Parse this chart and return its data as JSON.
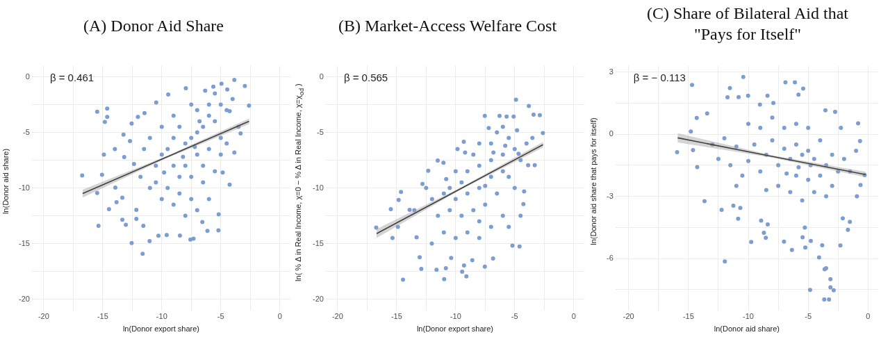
{
  "chart_data": [
    {
      "type": "scatter",
      "title": "(A) Donor Aid Share",
      "xlabel": "ln(Donor export share)",
      "ylabel": "ln(Donor aid share)",
      "annotations": [
        "β = 0.461"
      ],
      "marker": "circle",
      "grid": true,
      "xlim": [
        -21,
        0.9
      ],
      "ylim": [
        -21,
        1
      ],
      "xticks": [
        -20,
        {
          "value": -17.5,
          "label": null
        },
        -15,
        {
          "value": -12.5,
          "label": null
        },
        -10,
        {
          "value": -7.5,
          "label": null
        },
        -5,
        {
          "value": -2.5,
          "label": null
        },
        0
      ],
      "yticks": [
        -20,
        {
          "value": -17.5,
          "label": null
        },
        -15,
        {
          "value": -12.5,
          "label": null
        },
        -10,
        {
          "value": -7.5,
          "label": null
        },
        -5,
        {
          "value": -2.5,
          "label": null
        },
        0
      ],
      "series": [
        {
          "color": "#7c9dcf",
          "x": [
            -16.74,
            -15.47,
            -14.62,
            -14.82,
            -14.62,
            -14.9,
            -15.06,
            -15.47,
            -15.36,
            -14.47,
            -13.93,
            -13.83,
            -13.97,
            -13.24,
            -13.34,
            -13.34,
            -13.04,
            -12.55,
            -12.15,
            -12.15,
            -11.56,
            -11.62,
            -11.03,
            -10.28,
            -9.58,
            -8.46,
            -7.57,
            -7.31,
            -6.56,
            -6.13,
            -5.2,
            -5.18,
            -4.25,
            -4.84,
            -3.85,
            -2.96,
            -2.61,
            -4.94,
            -4.45,
            -5.63,
            -6.32,
            -7.96,
            -9.45,
            -10.47,
            -11.46,
            -12.02,
            -12.55,
            -12.69,
            -13.18,
            -12.35,
            -3.32,
            -3.85,
            -4.25,
            -7,
            -6.5,
            -7.5,
            -8,
            -6,
            -5.5,
            -7,
            -8.5,
            -9,
            -9.5,
            -10,
            -10.5,
            -8,
            -7,
            -6,
            -5,
            -4.5,
            -5,
            -6,
            -7.5,
            -9,
            -10,
            -11,
            -11.5,
            -10.5,
            -9.5,
            -8.5,
            -7.5,
            -6.5,
            -5.5,
            -6,
            -9,
            -10,
            -11,
            -7,
            -8,
            -8.5,
            -9,
            -7.5,
            -6.5,
            -5,
            -4.5,
            -3.5,
            -4,
            -5.5,
            -6.8,
            -7.2,
            -8.2,
            -9.8,
            -11.8
          ],
          "values": [
            -8.87,
            -3.13,
            -2.85,
            -4.06,
            -3.6,
            -7,
            -8.8,
            -10.45,
            -13.4,
            -11.9,
            -9.96,
            -11.28,
            -6.5,
            -5.2,
            -10.87,
            -12.85,
            -13.3,
            -14.95,
            -12.78,
            -11.96,
            -13.4,
            -15.92,
            -14.78,
            -14.29,
            -14.23,
            -14.27,
            -14.64,
            -14.56,
            -13.05,
            -13.86,
            -13.81,
            -12.37,
            -9.69,
            -8.6,
            -0.27,
            -0.82,
            -2.58,
            -0.62,
            -1.13,
            -0.89,
            -1.24,
            -1.03,
            -1.59,
            -2.31,
            -3.26,
            -3.6,
            -4.19,
            -5.77,
            -7.22,
            -7.84,
            -5.09,
            -6.8,
            -3.09,
            -5,
            -4.5,
            -5.5,
            -6,
            -3.5,
            -4,
            -3,
            -4.5,
            -5.5,
            -6.5,
            -7,
            -8,
            -8,
            -7,
            -6.5,
            -5.5,
            -3,
            -2.5,
            -2.5,
            -2.5,
            -3.5,
            -4.5,
            -5.5,
            -6.5,
            -9.5,
            -10,
            -10.5,
            -11,
            -9.5,
            -8.5,
            -11,
            -11.5,
            -11,
            -10,
            -12,
            -12.5,
            -9,
            -8,
            -9,
            -8,
            -7,
            -6,
            -4.5,
            -2,
            -1.5,
            -4,
            -6.3,
            -7.2,
            -8.6,
            -9
          ]
        },
        {
          "type": "line",
          "color": "#404040",
          "marker": "none",
          "x": [
            -16.7,
            -9.65,
            -2.6
          ],
          "values": [
            -10.5,
            -7.25,
            -4.0
          ],
          "lower": [
            -10.85,
            -7.35,
            -4.25
          ],
          "upper": [
            -10.15,
            -7.15,
            -3.75
          ]
        }
      ]
    },
    {
      "type": "scatter",
      "title": "(B) Market-Access Welfare Cost",
      "xlabel": "ln(Donor export share)",
      "ylabel": "ln( % Δ in Real Income, χ=0  −  % Δ in Real Income, χ=χ$_{od}$ )",
      "annotations": [
        "β = 0.565"
      ],
      "marker": "circle",
      "grid": true,
      "xlim": [
        -21,
        0.9
      ],
      "ylim": [
        -21,
        1
      ],
      "xticks": [
        -20,
        {
          "value": -17.5,
          "label": null
        },
        -15,
        {
          "value": -12.5,
          "label": null
        },
        -10,
        {
          "value": -7.5,
          "label": null
        },
        -5,
        {
          "value": -2.5,
          "label": null
        },
        0
      ],
      "yticks": [
        -20,
        {
          "value": -17.5,
          "label": null
        },
        -15,
        {
          "value": -12.5,
          "label": null
        },
        -10,
        {
          "value": -7.5,
          "label": null
        },
        -5,
        {
          "value": -2.5,
          "label": null
        },
        0
      ],
      "series": [
        {
          "color": "#7c9dcf",
          "x": [
            -16.73,
            -15.49,
            -15.35,
            -14.89,
            -14.63,
            -14.83,
            -14.46,
            -13.9,
            -13.31,
            -13.05,
            -12.91,
            -12.81,
            -12.32,
            -12.02,
            -11.62,
            -11.52,
            -10.83,
            -10.97,
            -10.38,
            -9.45,
            -9.09,
            -9.29,
            -8.59,
            -7.53,
            -6.83,
            -4.59,
            -5.19,
            -4.2,
            -4.26,
            -3.86,
            -3.3,
            -2.61,
            -2.87,
            -3.4,
            -3.8,
            -4.89,
            -5.09,
            -5.68,
            -6.28,
            -7.53,
            -9.31,
            -9.84,
            -11.03,
            -4.67,
            -7,
            -6.5,
            -6,
            -5.5,
            -5,
            -4.5,
            -6,
            -7,
            -8,
            -8.5,
            -8,
            -9,
            -9.5,
            -10,
            -10.5,
            -11,
            -10,
            -9,
            -8,
            -7,
            -6,
            -5.5,
            -5,
            -6.5,
            -7.5,
            -8.5,
            -9.5,
            -10.5,
            -11.5,
            -12,
            -8,
            -7,
            -6,
            -5.5,
            -9,
            -10,
            -8,
            -11,
            -7.5,
            -6.8,
            -5.8,
            -4.8,
            -4,
            -3.5,
            -7.2,
            -9.2,
            -10.8,
            -12.5,
            -13.5,
            -4.5
          ],
          "values": [
            -13.55,
            -11.9,
            -14.5,
            -13.5,
            -10.35,
            -11.07,
            -18.25,
            -11.96,
            -14.43,
            -16.23,
            -17.28,
            -9.63,
            -8.45,
            -15,
            -17.36,
            -7.53,
            -17.22,
            -18.19,
            -16.29,
            -17.53,
            -17.94,
            -16.97,
            -16.49,
            -17.07,
            -16.33,
            -15.26,
            -15.18,
            -10.31,
            -11.44,
            -7.94,
            -7.94,
            -5.05,
            -3.44,
            -3.4,
            -2.62,
            -2.06,
            -3.57,
            -3.57,
            -3.51,
            -3.51,
            -5.84,
            -6.49,
            -7.73,
            -6.91,
            -6,
            -5,
            -4.5,
            -5.5,
            -6.5,
            -7.5,
            -7,
            -7.5,
            -8,
            -7,
            -6,
            -8.5,
            -9.5,
            -8.5,
            -10,
            -10.5,
            -11,
            -10.5,
            -10,
            -9,
            -8.5,
            -9,
            -10,
            -10.5,
            -11.5,
            -12,
            -12.5,
            -12,
            -12.5,
            -11,
            -13,
            -13.5,
            -12.5,
            -13.5,
            -14,
            -14.5,
            -14.5,
            -14,
            -9.8,
            -6.8,
            -6.2,
            -4.8,
            -6,
            -5.5,
            -4.6,
            -6.8,
            -9.2,
            -10,
            -12,
            -12.5
          ]
        },
        {
          "type": "line",
          "color": "#404040",
          "marker": "none",
          "x": [
            -16.7,
            -9.65,
            -2.6
          ],
          "values": [
            -14.1,
            -10.1,
            -6.1
          ],
          "lower": [
            -14.5,
            -10.2,
            -6.35
          ],
          "upper": [
            -13.7,
            -10.0,
            -5.85
          ]
        }
      ]
    },
    {
      "type": "scatter",
      "title": "(C) Share of Bilateral Aid that \"Pays for Itself\"",
      "xlabel": "ln(Donor aid share)",
      "ylabel": "ln(Donor aid share that pays for itself)",
      "annotations": [
        "β = − 0.113"
      ],
      "marker": "circle",
      "grid": true,
      "xlim": [
        -21.1,
        0.85
      ],
      "ylim": [
        -8.5,
        3.3
      ],
      "xticks": [
        -20,
        {
          "value": -17.5,
          "label": null
        },
        -15,
        {
          "value": -12.5,
          "label": null
        },
        -10,
        {
          "value": -7.5,
          "label": null
        },
        -5,
        {
          "value": -2.5,
          "label": null
        },
        0
      ],
      "yticks": [
        {
          "value": -7.5,
          "label": null
        },
        -6,
        {
          "value": -4.5,
          "label": null
        },
        -3,
        {
          "value": -1.5,
          "label": null
        },
        0,
        {
          "value": 1.5,
          "label": null
        },
        3
      ],
      "series": [
        {
          "color": "#7c9dcf",
          "x": [
            -15.95,
            -14.62,
            -14.7,
            -10.42,
            -14.8,
            -14.31,
            -14.27,
            -13.66,
            -13.44,
            -11.96,
            -12.23,
            -11.74,
            -11.54,
            -10.81,
            -11.25,
            -10.85,
            -10.67,
            -10.02,
            -9.76,
            -9.03,
            -8.93,
            -8.7,
            -8.54,
            -8.38,
            -8.4,
            -7.91,
            -7.02,
            -6.9,
            -6.36,
            -6.11,
            -5.81,
            -5.42,
            -5.28,
            -5.47,
            -5.24,
            -4.78,
            -4.84,
            -4.09,
            -3.83,
            -3.63,
            -3.5,
            -3.66,
            -3.26,
            -3.14,
            -3.14,
            -2.87,
            -2.31,
            -2.11,
            -1.68,
            -1.52,
            -0.83,
            -0.67,
            -0.63,
            -0.93,
            -0.28,
            -2.75,
            -3.56,
            -2.27,
            -6,
            -5.5,
            -5,
            -4.5,
            -6.5,
            -7,
            -7.5,
            -8,
            -8.5,
            -9,
            -9.5,
            -10,
            -10.5,
            -11,
            -11.5,
            -12,
            -12.5,
            -13,
            -6,
            -5,
            -4,
            -3.5,
            -3,
            -2.5,
            -2,
            -1.5,
            -1,
            -4,
            -5,
            -6,
            -7,
            -8,
            -9,
            -6.5,
            -5.5,
            -4.5,
            -3.5,
            -7.5,
            -8.5,
            -5.8,
            -4.8,
            -6.8,
            -3,
            -10,
            -11
          ],
          "values": [
            -0.87,
            -0.77,
            2.37,
            2.76,
            0.13,
            0.78,
            -1.59,
            -3.23,
            1,
            -6.14,
            -3.65,
            1.78,
            2.22,
            1.79,
            -3.45,
            -4.08,
            -3.56,
            1.85,
            -5.2,
            1.43,
            -4.17,
            -4.76,
            -5,
            -4.36,
            1.85,
            1.5,
            -5.19,
            2.5,
            -5.59,
            2.5,
            1.9,
            2.2,
            -4.51,
            -4.98,
            -5.47,
            -5.15,
            -7.52,
            -5.95,
            -5.36,
            -6.52,
            -6.47,
            -7.98,
            -7.98,
            -7,
            -7.39,
            -7.53,
            -5.37,
            -4.06,
            -4.62,
            -4.23,
            0.52,
            -0.33,
            -2.45,
            -3,
            -1.98,
            1.07,
            1.15,
            0.3,
            -0.5,
            -1,
            -0.8,
            -1.2,
            -1.2,
            -0.7,
            -1.5,
            -0.3,
            -1,
            -1.8,
            -0.5,
            -1.3,
            -2,
            -0.6,
            -1.5,
            -0.2,
            -1.2,
            -0.5,
            -2,
            -2.2,
            -2,
            -1.5,
            -1,
            -1.8,
            -1.2,
            -1.8,
            -0.8,
            -0.3,
            0.3,
            0.5,
            0.3,
            0.8,
            0.3,
            -2.8,
            -3.2,
            -2.8,
            -3,
            -2.5,
            -2.7,
            -1.6,
            -1.5,
            -1.9,
            -2.5,
            0.5,
            -2.5
          ]
        },
        {
          "type": "line",
          "color": "#404040",
          "marker": "none",
          "x": [
            -15.9,
            -8.05,
            -0.2
          ],
          "values": [
            -0.18,
            -1.07,
            -1.95
          ],
          "lower": [
            -0.4,
            -1.13,
            -2.08
          ],
          "upper": [
            0.04,
            -1.01,
            -1.82
          ]
        }
      ]
    }
  ]
}
